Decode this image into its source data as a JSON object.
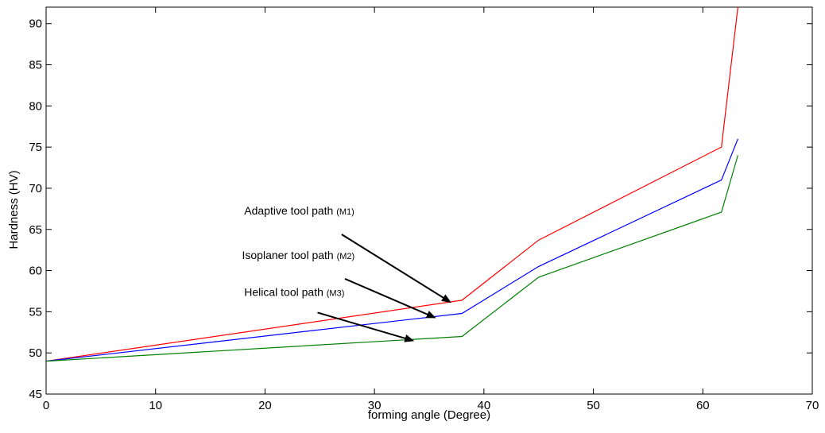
{
  "chart_data": {
    "type": "line",
    "xlabel": "forming angle (Degree)",
    "ylabel": "Hardness (HV)",
    "xlim": [
      0,
      70
    ],
    "ylim": [
      45,
      92
    ],
    "xticks": [
      "0",
      "10",
      "20",
      "30",
      "40",
      "50",
      "60",
      "70"
    ],
    "yticks": [
      "45",
      "50",
      "55",
      "60",
      "65",
      "70",
      "75",
      "80",
      "85",
      "90"
    ],
    "grid": false,
    "legend": "none",
    "series": [
      {
        "color": "#ff0000",
        "x": [
          0,
          38,
          45,
          61.7,
          63.2
        ],
        "y": [
          49,
          56.4,
          63.7,
          75,
          92
        ]
      },
      {
        "color": "#0000ff",
        "x": [
          0,
          38,
          45,
          61.7,
          63.2
        ],
        "y": [
          49,
          54.8,
          60.5,
          71,
          76
        ]
      },
      {
        "color": "#008000",
        "x": [
          0,
          38,
          45,
          61.7,
          63.2
        ],
        "y": [
          49,
          52,
          59.2,
          67.1,
          74
        ]
      }
    ],
    "annotations": [
      {
        "text": "Adaptive tool path",
        "sub": "(M1)",
        "text_at": [
          18.1,
          66.8
        ],
        "arrow_from": [
          27,
          64.4
        ],
        "arrow_to": [
          36.9,
          56.2
        ]
      },
      {
        "text": "Isoplaner tool path",
        "sub": "(M2)",
        "text_at": [
          17.9,
          61.4
        ],
        "arrow_from": [
          27.3,
          59.0
        ],
        "arrow_to": [
          35.5,
          54.3
        ]
      },
      {
        "text": "Helical tool path",
        "sub": "(M3)",
        "text_at": [
          18.1,
          56.9
        ],
        "arrow_from": [
          24.8,
          54.9
        ],
        "arrow_to": [
          33.5,
          51.5
        ]
      }
    ]
  }
}
